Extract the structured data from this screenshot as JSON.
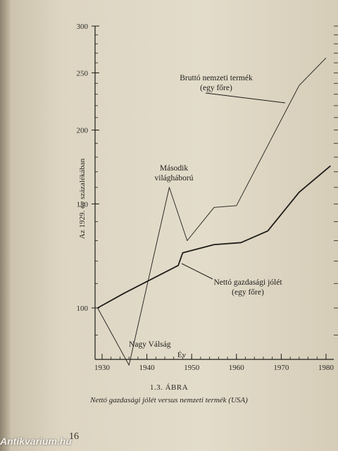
{
  "chart_data": {
    "type": "line",
    "xlabel": "Év",
    "ylabel": "Az 1929. év százalékában",
    "xlim": [
      1928,
      1982
    ],
    "ylim": [
      85,
      300
    ],
    "x_ticks": [
      "1930",
      "1940",
      "1950",
      "1960",
      "1970",
      "1980"
    ],
    "y_ticks": [
      "100",
      "150",
      "200",
      "250",
      "300"
    ],
    "series": [
      {
        "name": "Bruttó nemzeti termék (egy főre)",
        "points": [
          [
            1929,
            100
          ],
          [
            1936,
            80
          ],
          [
            1945,
            160
          ],
          [
            1949,
            130
          ],
          [
            1955,
            148
          ],
          [
            1960,
            149
          ],
          [
            1974,
            238
          ],
          [
            1980,
            265
          ]
        ]
      },
      {
        "name": "Nettó gazdasági jólét (egy főre)",
        "points": [
          [
            1929,
            100
          ],
          [
            1935,
            106
          ],
          [
            1947,
            118
          ],
          [
            1948,
            124
          ],
          [
            1955,
            128
          ],
          [
            1961,
            129
          ],
          [
            1967,
            135
          ],
          [
            1974,
            157
          ],
          [
            1981,
            174
          ]
        ]
      }
    ],
    "annotations": {
      "gnp": [
        "Bruttó nemzeti termék",
        "(egy főre)"
      ],
      "nep": [
        "Nettó gazdasági jólét",
        "(egy főre)"
      ],
      "ww2": [
        "Második",
        "világháború"
      ],
      "depression": "Nagy Válság"
    }
  },
  "caption": {
    "number": "1.3. ÁBRA",
    "text": "Nettó gazdasági jólét versus nemzeti termék (USA)"
  },
  "page_number": "16",
  "watermark": "Antikvarium.hu"
}
